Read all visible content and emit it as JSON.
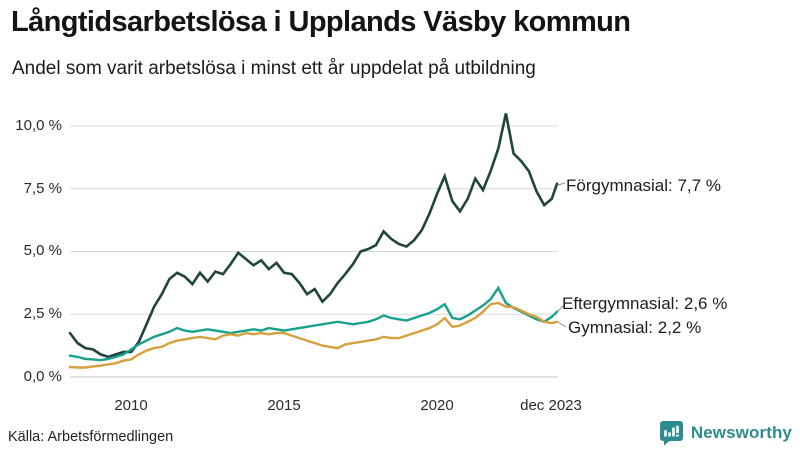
{
  "header": {
    "title": "Långtidsarbetslösa i Upplands Väsby kommun",
    "subtitle": "Andel som varit arbetslösa i minst ett år uppdelat på utbildning"
  },
  "footer": {
    "source": "Källa: Arbetsförmedlingen",
    "brand": "Newsworthy"
  },
  "colors": {
    "forgymnasial": "#20453e",
    "eftergymnasial": "#17a08b",
    "gymnasial": "#d6a03c",
    "brand_teal": "#2e8c8e",
    "grid": "#d9d9d9",
    "zero_line": "#c6c6c6",
    "connector": "#8c8c8c"
  },
  "chart_data": {
    "type": "line",
    "title": "Långtidsarbetslösa i Upplands Väsby kommun",
    "subtitle": "Andel som varit arbetslösa i minst ett år uppdelat på utbildning",
    "xlabel": "",
    "ylabel": "",
    "xlim": [
      2008,
      2023.92
    ],
    "ylim": [
      0,
      10
    ],
    "grid": "horizontal",
    "legend_position": "line-end-labels",
    "y_ticks": [
      {
        "value": 0,
        "label": "0,0 %"
      },
      {
        "value": 2.5,
        "label": "2,5 %"
      },
      {
        "value": 5,
        "label": "5,0 %"
      },
      {
        "value": 7.5,
        "label": "7,5 %"
      },
      {
        "value": 10,
        "label": "10,0 %"
      }
    ],
    "x_ticks": [
      {
        "value": 2010,
        "label": "2010"
      },
      {
        "value": 2015,
        "label": "2015"
      },
      {
        "value": 2020,
        "label": "2020"
      },
      {
        "value": 2023.92,
        "label": "dec 2023"
      }
    ],
    "x": [
      2008,
      2008.25,
      2008.5,
      2008.75,
      2009,
      2009.25,
      2009.5,
      2009.75,
      2010,
      2010.25,
      2010.5,
      2010.75,
      2011,
      2011.25,
      2011.5,
      2011.75,
      2012,
      2012.25,
      2012.5,
      2012.75,
      2013,
      2013.25,
      2013.5,
      2013.75,
      2014,
      2014.25,
      2014.5,
      2014.75,
      2015,
      2015.25,
      2015.5,
      2015.75,
      2016,
      2016.25,
      2016.5,
      2016.75,
      2017,
      2017.25,
      2017.5,
      2017.75,
      2018,
      2018.25,
      2018.5,
      2018.75,
      2019,
      2019.25,
      2019.5,
      2019.75,
      2020,
      2020.25,
      2020.5,
      2020.75,
      2021,
      2021.25,
      2021.5,
      2021.75,
      2022,
      2022.25,
      2022.5,
      2022.75,
      2023,
      2023.25,
      2023.5,
      2023.75,
      2023.92
    ],
    "series": [
      {
        "id": "forgymnasial",
        "name": "Förgymnasial",
        "color": "#20453e",
        "stroke_width": 2.6,
        "end_value": 7.7,
        "end_label": "Förgymnasial: 7,7 %",
        "values": [
          1.75,
          1.35,
          1.15,
          1.1,
          0.9,
          0.8,
          0.9,
          1.0,
          1.0,
          1.4,
          2.1,
          2.8,
          3.3,
          3.9,
          4.15,
          4.0,
          3.7,
          4.15,
          3.8,
          4.2,
          4.1,
          4.5,
          4.95,
          4.7,
          4.45,
          4.65,
          4.3,
          4.55,
          4.15,
          4.1,
          3.75,
          3.3,
          3.5,
          3.0,
          3.3,
          3.75,
          4.1,
          4.5,
          5.0,
          5.1,
          5.25,
          5.8,
          5.5,
          5.3,
          5.2,
          5.45,
          5.85,
          6.5,
          7.3,
          8.0,
          7.0,
          6.6,
          7.1,
          7.9,
          7.45,
          8.2,
          9.1,
          10.5,
          8.9,
          8.6,
          8.2,
          7.4,
          6.85,
          7.1,
          7.7
        ]
      },
      {
        "id": "eftergymnasial",
        "name": "Eftergymnasial",
        "color": "#17a08b",
        "stroke_width": 2.4,
        "end_value": 2.6,
        "end_label": "Eftergymnasial: 2,6 %",
        "values": [
          0.85,
          0.8,
          0.72,
          0.7,
          0.67,
          0.72,
          0.8,
          0.9,
          1.1,
          1.3,
          1.45,
          1.6,
          1.7,
          1.8,
          1.95,
          1.85,
          1.8,
          1.85,
          1.9,
          1.85,
          1.8,
          1.75,
          1.8,
          1.85,
          1.9,
          1.85,
          1.95,
          1.9,
          1.85,
          1.9,
          1.95,
          2.0,
          2.05,
          2.1,
          2.15,
          2.2,
          2.15,
          2.1,
          2.15,
          2.2,
          2.3,
          2.45,
          2.35,
          2.3,
          2.25,
          2.35,
          2.45,
          2.55,
          2.7,
          2.9,
          2.35,
          2.3,
          2.45,
          2.65,
          2.85,
          3.1,
          3.55,
          2.95,
          2.75,
          2.6,
          2.45,
          2.3,
          2.2,
          2.4,
          2.6
        ]
      },
      {
        "id": "gymnasial",
        "name": "Gymnasial",
        "color": "#d6a03c",
        "stroke_width": 2.4,
        "end_value": 2.2,
        "end_label": "Gymnasial: 2,2 %",
        "values": [
          0.4,
          0.38,
          0.38,
          0.42,
          0.45,
          0.5,
          0.55,
          0.65,
          0.7,
          0.9,
          1.05,
          1.15,
          1.2,
          1.35,
          1.45,
          1.5,
          1.55,
          1.6,
          1.55,
          1.5,
          1.65,
          1.7,
          1.65,
          1.75,
          1.7,
          1.75,
          1.7,
          1.75,
          1.75,
          1.65,
          1.55,
          1.45,
          1.35,
          1.25,
          1.2,
          1.15,
          1.3,
          1.35,
          1.4,
          1.45,
          1.5,
          1.6,
          1.55,
          1.55,
          1.65,
          1.75,
          1.85,
          1.95,
          2.1,
          2.35,
          2.0,
          2.05,
          2.2,
          2.35,
          2.6,
          2.9,
          2.95,
          2.8,
          2.78,
          2.65,
          2.5,
          2.4,
          2.2,
          2.15,
          2.2
        ]
      }
    ]
  }
}
